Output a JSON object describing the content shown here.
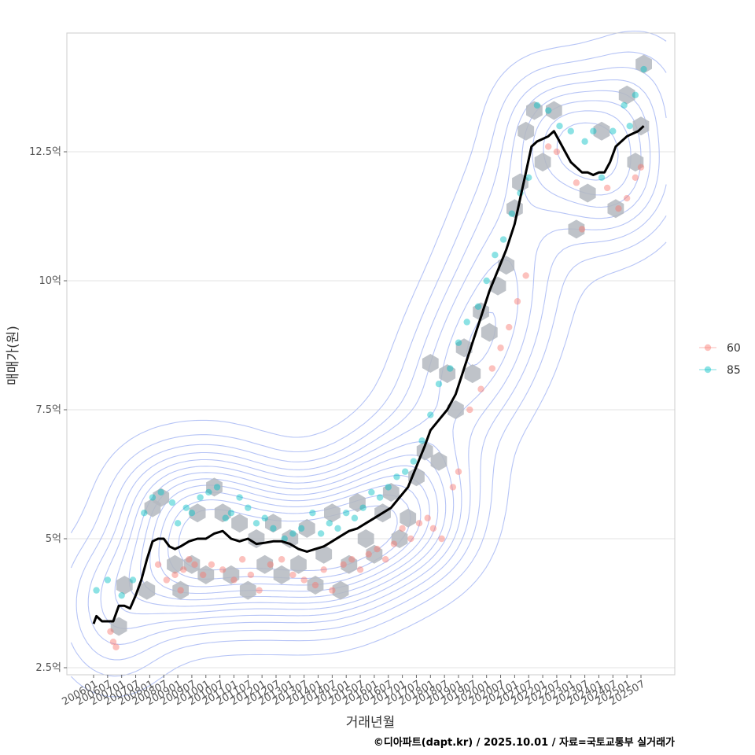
{
  "chart_data": {
    "type": "scatter",
    "xlabel": "거래년월",
    "ylabel": "매매가(원)",
    "caption": "©디아파트(dapt.kr) / 2025.10.01 / 자료=국토교통부 실거래가",
    "x_tick_labels": [
      "200601",
      "200607",
      "200701",
      "200707",
      "200801",
      "200807",
      "200901",
      "200907",
      "201001",
      "201007",
      "201101",
      "201107",
      "201201",
      "201207",
      "201301",
      "201307",
      "201401",
      "201407",
      "201501",
      "201507",
      "201601",
      "201607",
      "201701",
      "201707",
      "201801",
      "201807",
      "201901",
      "201907",
      "202001",
      "202007",
      "202101",
      "202107",
      "202201",
      "202207",
      "202301",
      "202307",
      "202401",
      "202407",
      "202501",
      "202507"
    ],
    "y_ticks": [
      2.5,
      5,
      7.5,
      10,
      12.5
    ],
    "y_tick_labels": [
      "2.5억",
      "5억",
      "7.5억",
      "10억",
      "12.5억"
    ],
    "ylim": [
      2.4,
      14.9
    ],
    "grid": true,
    "legend_position": "right",
    "legend": [
      {
        "label": "60",
        "color": "#F8766D"
      },
      {
        "label": "85",
        "color": "#00BFC4"
      }
    ],
    "trend_line": {
      "color": "#000000",
      "x": [
        2006.0,
        2006.1,
        2006.3,
        2006.5,
        2006.7,
        2006.9,
        2007.1,
        2007.3,
        2007.5,
        2007.7,
        2007.9,
        2008.1,
        2008.3,
        2008.5,
        2008.7,
        2008.9,
        2009.1,
        2009.4,
        2009.7,
        2010.0,
        2010.3,
        2010.6,
        2010.9,
        2011.2,
        2011.5,
        2011.8,
        2012.1,
        2012.4,
        2012.7,
        2013.0,
        2013.3,
        2013.6,
        2013.9,
        2014.2,
        2014.5,
        2014.8,
        2015.1,
        2015.4,
        2015.7,
        2016.0,
        2016.3,
        2016.6,
        2016.9,
        2017.2,
        2017.5,
        2017.8,
        2018.0,
        2018.3,
        2018.6,
        2018.9,
        2019.2,
        2019.5,
        2019.8,
        2020.1,
        2020.4,
        2020.7,
        2021.0,
        2021.2,
        2021.4,
        2021.6,
        2021.8,
        2022.0,
        2022.2,
        2022.4,
        2022.6,
        2022.8,
        2023.0,
        2023.2,
        2023.4,
        2023.6,
        2023.8,
        2024.0,
        2024.2,
        2024.4,
        2024.6,
        2024.8,
        2025.0,
        2025.2,
        2025.4,
        2025.6
      ],
      "y": [
        3.35,
        3.5,
        3.4,
        3.4,
        3.4,
        3.7,
        3.7,
        3.65,
        3.9,
        4.2,
        4.6,
        4.95,
        5.0,
        5.0,
        4.85,
        4.8,
        4.85,
        4.95,
        5.0,
        5.0,
        5.1,
        5.15,
        5.0,
        4.95,
        5.0,
        4.9,
        4.92,
        4.95,
        4.95,
        4.9,
        4.8,
        4.75,
        4.8,
        4.85,
        4.95,
        5.05,
        5.15,
        5.2,
        5.3,
        5.4,
        5.5,
        5.6,
        5.8,
        6.0,
        6.4,
        6.8,
        7.1,
        7.3,
        7.5,
        7.8,
        8.3,
        8.8,
        9.3,
        9.8,
        10.2,
        10.6,
        11.1,
        11.6,
        12.1,
        12.6,
        12.7,
        12.75,
        12.8,
        12.9,
        12.7,
        12.5,
        12.3,
        12.2,
        12.1,
        12.1,
        12.05,
        12.1,
        12.1,
        12.3,
        12.6,
        12.7,
        12.8,
        12.85,
        12.9,
        13.0
      ]
    },
    "series": [
      {
        "name": "60",
        "color": "#F8766D",
        "x": [
          2006.6,
          2006.7,
          2006.8,
          2008.3,
          2008.6,
          2008.9,
          2009.1,
          2009.2,
          2009.4,
          2009.6,
          2009.9,
          2010.2,
          2010.6,
          2011.0,
          2011.3,
          2011.6,
          2011.9,
          2012.3,
          2012.7,
          2013.1,
          2013.5,
          2013.9,
          2014.2,
          2014.5,
          2014.9,
          2015.2,
          2015.5,
          2015.8,
          2016.1,
          2016.4,
          2016.7,
          2017.0,
          2017.3,
          2017.6,
          2017.9,
          2018.1,
          2018.4,
          2018.8,
          2019.0,
          2019.4,
          2019.8,
          2020.2,
          2020.5,
          2020.8,
          2021.1,
          2021.4,
          2022.2,
          2022.5,
          2023.2,
          2023.4,
          2024.3,
          2024.7,
          2025.0,
          2025.3,
          2025.5
        ],
        "y": [
          3.2,
          3.0,
          2.9,
          4.5,
          4.2,
          4.3,
          4.0,
          4.4,
          4.6,
          4.5,
          4.3,
          4.5,
          4.4,
          4.2,
          4.6,
          4.3,
          4.0,
          4.5,
          4.6,
          4.3,
          4.2,
          4.1,
          4.4,
          4.0,
          4.5,
          4.6,
          4.4,
          4.7,
          4.8,
          4.6,
          4.9,
          5.2,
          5.0,
          5.3,
          5.4,
          5.2,
          5.0,
          6.0,
          6.3,
          7.5,
          7.9,
          8.3,
          8.7,
          9.1,
          9.6,
          10.1,
          12.6,
          12.5,
          11.9,
          11.0,
          11.8,
          11.4,
          11.6,
          12.0,
          12.2
        ]
      },
      {
        "name": "85",
        "color": "#00BFC4",
        "x": [
          2006.1,
          2006.5,
          2007.0,
          2007.4,
          2007.8,
          2008.1,
          2008.4,
          2008.8,
          2009.0,
          2009.3,
          2009.5,
          2009.8,
          2010.1,
          2010.4,
          2010.7,
          2010.9,
          2011.2,
          2011.5,
          2011.8,
          2012.1,
          2012.4,
          2012.8,
          2013.1,
          2013.4,
          2013.8,
          2014.1,
          2014.4,
          2014.7,
          2015.0,
          2015.3,
          2015.6,
          2015.9,
          2016.2,
          2016.5,
          2016.8,
          2017.1,
          2017.4,
          2017.7,
          2018.0,
          2018.3,
          2018.7,
          2019.0,
          2019.3,
          2019.7,
          2020.0,
          2020.3,
          2020.6,
          2020.9,
          2021.2,
          2021.5,
          2021.8,
          2022.2,
          2022.6,
          2023.0,
          2023.5,
          2023.8,
          2024.1,
          2024.5,
          2024.9,
          2025.1,
          2025.3,
          2025.6
        ],
        "y": [
          4.0,
          4.2,
          3.9,
          4.2,
          5.5,
          5.8,
          5.9,
          5.7,
          5.3,
          5.6,
          5.5,
          5.8,
          5.9,
          6.0,
          5.4,
          5.5,
          5.8,
          5.6,
          5.3,
          5.4,
          5.2,
          5.0,
          5.1,
          5.2,
          5.5,
          5.1,
          5.3,
          5.2,
          5.5,
          5.4,
          5.6,
          5.9,
          5.8,
          6.0,
          6.2,
          6.3,
          6.5,
          6.9,
          7.4,
          8.0,
          8.3,
          8.8,
          9.2,
          9.5,
          10.0,
          10.5,
          10.8,
          11.3,
          11.7,
          12.0,
          13.4,
          13.3,
          13.0,
          12.9,
          12.7,
          12.9,
          12.0,
          12.9,
          13.4,
          13.0,
          13.6,
          14.1
        ]
      }
    ],
    "hexbin_centers": [
      [
        2006.9,
        3.3
      ],
      [
        2007.1,
        4.1
      ],
      [
        2007.9,
        4.0
      ],
      [
        2008.1,
        5.6
      ],
      [
        2008.4,
        5.8
      ],
      [
        2008.9,
        4.5
      ],
      [
        2009.1,
        4.0
      ],
      [
        2009.5,
        4.5
      ],
      [
        2009.7,
        5.5
      ],
      [
        2010.0,
        4.3
      ],
      [
        2010.3,
        6.0
      ],
      [
        2010.6,
        5.5
      ],
      [
        2010.9,
        4.3
      ],
      [
        2011.2,
        5.3
      ],
      [
        2011.5,
        4.0
      ],
      [
        2011.8,
        5.0
      ],
      [
        2012.1,
        4.5
      ],
      [
        2012.4,
        5.3
      ],
      [
        2012.7,
        4.3
      ],
      [
        2013.0,
        5.0
      ],
      [
        2013.3,
        4.5
      ],
      [
        2013.6,
        5.2
      ],
      [
        2013.9,
        4.1
      ],
      [
        2014.2,
        4.7
      ],
      [
        2014.5,
        5.5
      ],
      [
        2014.8,
        4.0
      ],
      [
        2015.1,
        4.5
      ],
      [
        2015.4,
        5.7
      ],
      [
        2015.7,
        5.0
      ],
      [
        2016.0,
        4.7
      ],
      [
        2016.3,
        5.5
      ],
      [
        2016.6,
        5.9
      ],
      [
        2016.9,
        5.0
      ],
      [
        2017.2,
        5.4
      ],
      [
        2017.5,
        6.2
      ],
      [
        2017.8,
        6.7
      ],
      [
        2018.0,
        8.4
      ],
      [
        2018.3,
        6.5
      ],
      [
        2018.6,
        8.2
      ],
      [
        2018.9,
        7.5
      ],
      [
        2019.2,
        8.7
      ],
      [
        2019.5,
        8.2
      ],
      [
        2019.8,
        9.4
      ],
      [
        2020.1,
        9.0
      ],
      [
        2020.4,
        9.9
      ],
      [
        2020.7,
        10.3
      ],
      [
        2021.0,
        11.4
      ],
      [
        2021.2,
        11.9
      ],
      [
        2021.4,
        12.9
      ],
      [
        2021.7,
        13.3
      ],
      [
        2022.0,
        12.3
      ],
      [
        2022.4,
        13.3
      ],
      [
        2023.2,
        11.0
      ],
      [
        2023.6,
        11.7
      ],
      [
        2024.1,
        12.9
      ],
      [
        2024.6,
        11.4
      ],
      [
        2025.0,
        13.6
      ],
      [
        2025.3,
        12.3
      ],
      [
        2025.6,
        14.2
      ],
      [
        2025.5,
        13.0
      ]
    ],
    "contour_levels": 12,
    "contour_color": "#aebef5",
    "hex_color": "#b4b9bf"
  }
}
